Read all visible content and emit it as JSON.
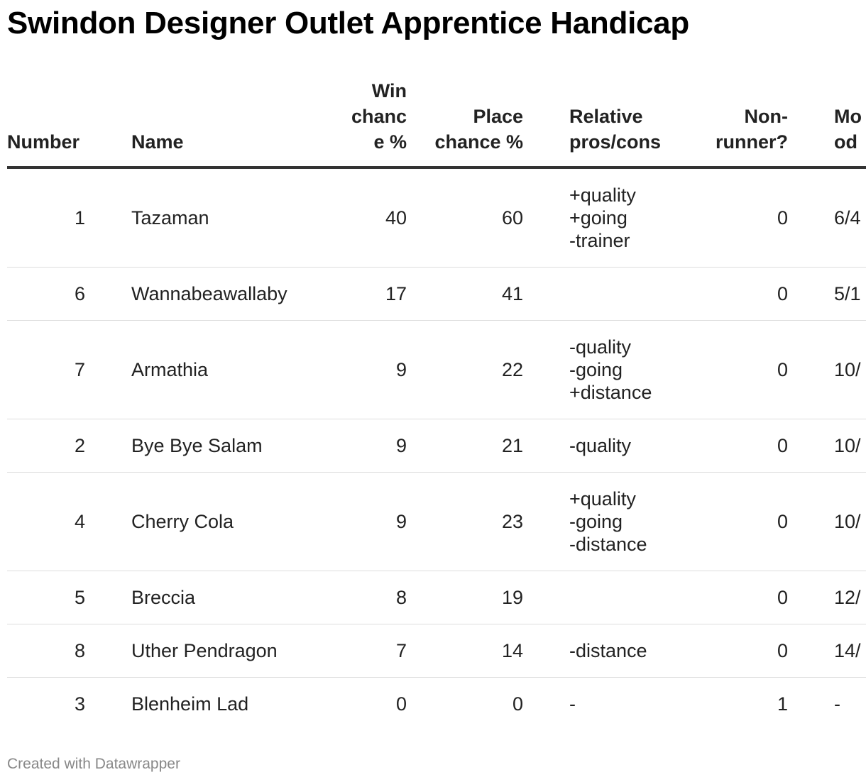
{
  "title": "Swindon Designer Outlet Apprentice Handicap",
  "footer": "Created with Datawrapper",
  "chart_data": {
    "type": "table",
    "columns": {
      "number": "Number",
      "name": "Name",
      "win": "Win chance %",
      "place": "Place chance %",
      "relative": "Relative pros/cons",
      "non_runner": "Non-runner?",
      "odds": "Mo od"
    },
    "rows": [
      {
        "number": "1",
        "name": "Tazaman",
        "win": "40",
        "place": "60",
        "relative": [
          "+quality",
          "+going",
          "-trainer"
        ],
        "non_runner": "0",
        "odds": "6/4"
      },
      {
        "number": "6",
        "name": "Wannabeawallaby",
        "win": "17",
        "place": "41",
        "relative": [],
        "non_runner": "0",
        "odds": "5/1"
      },
      {
        "number": "7",
        "name": "Armathia",
        "win": "9",
        "place": "22",
        "relative": [
          "-quality",
          "-going",
          "+distance"
        ],
        "non_runner": "0",
        "odds": "10/"
      },
      {
        "number": "2",
        "name": "Bye Bye Salam",
        "win": "9",
        "place": "21",
        "relative": [
          "-quality"
        ],
        "non_runner": "0",
        "odds": "10/"
      },
      {
        "number": "4",
        "name": "Cherry Cola",
        "win": "9",
        "place": "23",
        "relative": [
          "+quality",
          "-going",
          "-distance"
        ],
        "non_runner": "0",
        "odds": "10/"
      },
      {
        "number": "5",
        "name": "Breccia",
        "win": "8",
        "place": "19",
        "relative": [],
        "non_runner": "0",
        "odds": "12/"
      },
      {
        "number": "8",
        "name": "Uther Pendragon",
        "win": "7",
        "place": "14",
        "relative": [
          "-distance"
        ],
        "non_runner": "0",
        "odds": "14/"
      },
      {
        "number": "3",
        "name": "Blenheim Lad",
        "win": "0",
        "place": "0",
        "relative": [
          "-"
        ],
        "non_runner": "1",
        "odds": "-"
      }
    ]
  }
}
